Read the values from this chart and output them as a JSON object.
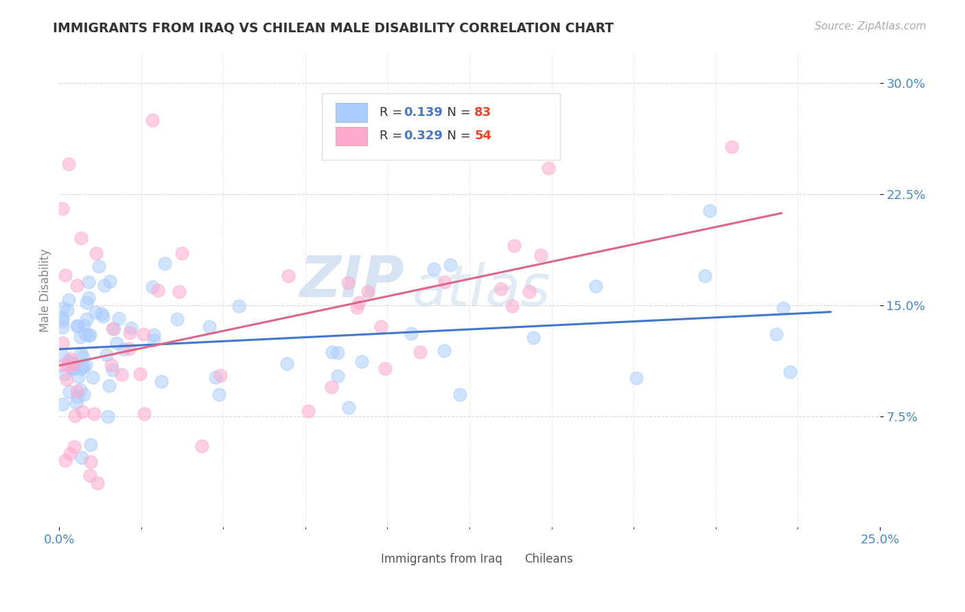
{
  "title": "IMMIGRANTS FROM IRAQ VS CHILEAN MALE DISABILITY CORRELATION CHART",
  "source_text": "Source: ZipAtlas.com",
  "ylabel": "Male Disability",
  "xlim": [
    0.0,
    0.25
  ],
  "ylim": [
    0.0,
    0.32
  ],
  "xtick_labels": [
    "0.0%",
    "25.0%"
  ],
  "yticks": [
    0.075,
    0.15,
    0.225,
    0.3
  ],
  "ytick_labels": [
    "7.5%",
    "15.0%",
    "22.5%",
    "30.0%"
  ],
  "series1_label": "Immigrants from Iraq",
  "series1_R": "0.139",
  "series1_N": "83",
  "series1_color": "#aaccff",
  "series1_line_color": "#4477cc",
  "series2_label": "Chileans",
  "series2_R": "0.329",
  "series2_N": "54",
  "series2_color": "#ffaacc",
  "series2_line_color": "#dd6688",
  "watermark1": "ZIP",
  "watermark2": "atlas",
  "background_color": "#ffffff",
  "axis_label_color": "#4488cc",
  "title_color": "#333333"
}
